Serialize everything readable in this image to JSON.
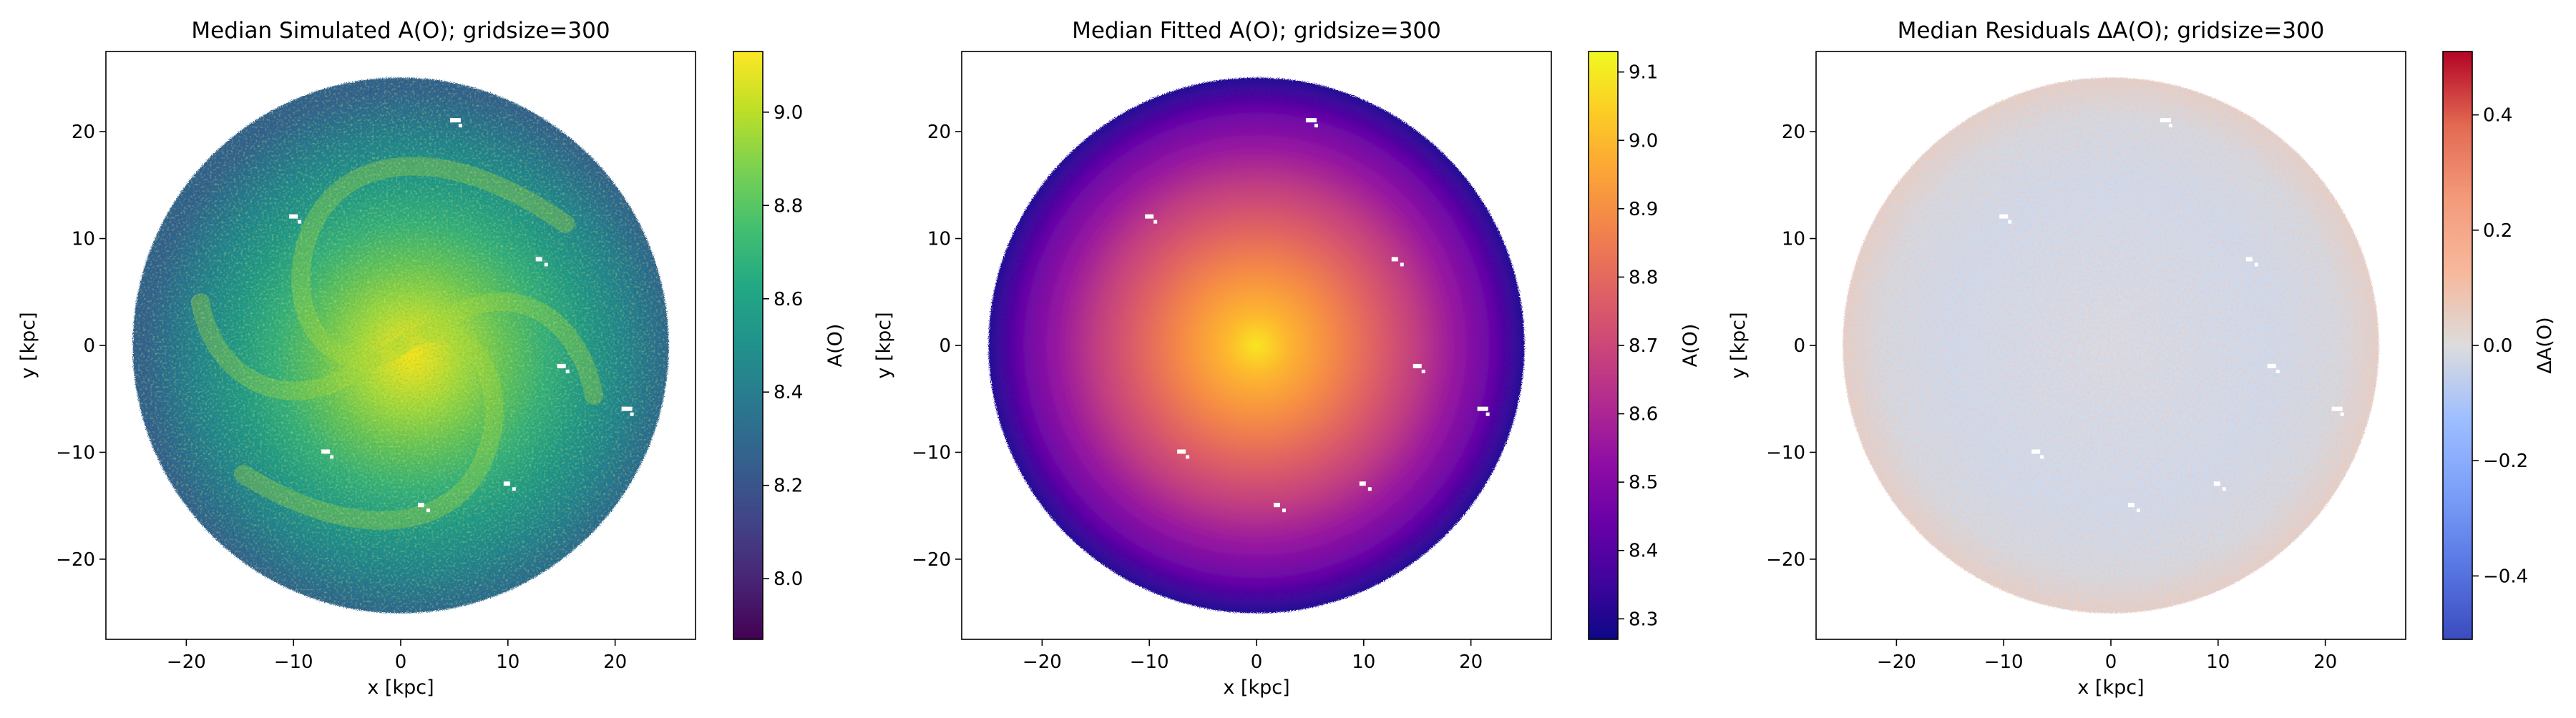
{
  "panels": [
    {
      "title": "Median Simulated A(O); gridsize=300",
      "xlabel": "x [kpc]",
      "ylabel": "y [kpc]",
      "xlim": [
        -27.5,
        27.5
      ],
      "ylim": [
        -27.5,
        27.5
      ],
      "xticks": [
        -20,
        -10,
        0,
        10,
        20
      ],
      "yticks": [
        -20,
        -10,
        0,
        10,
        20
      ],
      "xtick_labels": [
        "−20",
        "−10",
        "0",
        "10",
        "20"
      ],
      "ytick_labels": [
        "−20",
        "−10",
        "0",
        "10",
        "20"
      ],
      "disk_radius_kpc": 25,
      "map": "simulated",
      "colorbar": {
        "label": "A(O)",
        "cmap": "viridis",
        "range": [
          7.87,
          9.13
        ],
        "ticks": [
          8.0,
          8.2,
          8.4,
          8.6,
          8.8,
          9.0
        ],
        "tick_labels": [
          "8.0",
          "8.2",
          "8.4",
          "8.6",
          "8.8",
          "9.0"
        ]
      }
    },
    {
      "title": "Median Fitted A(O); gridsize=300",
      "xlabel": "x [kpc]",
      "ylabel": "y [kpc]",
      "xlim": [
        -27.5,
        27.5
      ],
      "ylim": [
        -27.5,
        27.5
      ],
      "xticks": [
        -20,
        -10,
        0,
        10,
        20
      ],
      "yticks": [
        -20,
        -10,
        0,
        10,
        20
      ],
      "xtick_labels": [
        "−20",
        "−10",
        "0",
        "10",
        "20"
      ],
      "ytick_labels": [
        "−20",
        "−10",
        "0",
        "10",
        "20"
      ],
      "disk_radius_kpc": 25,
      "map": "fitted",
      "colorbar": {
        "label": "A(O)",
        "cmap": "plasma",
        "range": [
          8.27,
          9.13
        ],
        "ticks": [
          8.3,
          8.4,
          8.5,
          8.6,
          8.7,
          8.8,
          8.9,
          9.0,
          9.1
        ],
        "tick_labels": [
          "8.3",
          "8.4",
          "8.5",
          "8.6",
          "8.7",
          "8.8",
          "8.9",
          "9.0",
          "9.1"
        ]
      }
    },
    {
      "title": "Median Residuals ΔA(O); gridsize=300",
      "xlabel": "x [kpc]",
      "ylabel": "y [kpc]",
      "xlim": [
        -27.5,
        27.5
      ],
      "ylim": [
        -27.5,
        27.5
      ],
      "xticks": [
        -20,
        -10,
        0,
        10,
        20
      ],
      "yticks": [
        -20,
        -10,
        0,
        10,
        20
      ],
      "xtick_labels": [
        "−20",
        "−10",
        "0",
        "10",
        "20"
      ],
      "ytick_labels": [
        "−20",
        "−10",
        "0",
        "10",
        "20"
      ],
      "disk_radius_kpc": 25,
      "map": "residual",
      "colorbar": {
        "label": "ΔA(O)",
        "cmap": "coolwarm",
        "range": [
          -0.51,
          0.51
        ],
        "ticks": [
          -0.4,
          -0.2,
          0.0,
          0.2,
          0.4
        ],
        "tick_labels": [
          "−0.4",
          "−0.2",
          "0.0",
          "0.2",
          "0.4"
        ]
      }
    }
  ],
  "chart_data": [
    {
      "type": "heatmap",
      "title": "Median Simulated A(O); gridsize=300",
      "xlabel": "x [kpc]",
      "ylabel": "y [kpc]",
      "xlim": [
        -27.5,
        27.5
      ],
      "ylim": [
        -27.5,
        27.5
      ],
      "colorbar_label": "A(O)",
      "colormap": "viridis",
      "value_range": [
        7.87,
        9.13
      ],
      "disk_radius": 25,
      "center_value": 9.05,
      "edge_value": 8.3
    },
    {
      "type": "heatmap",
      "title": "Median Fitted A(O); gridsize=300",
      "xlabel": "x [kpc]",
      "ylabel": "y [kpc]",
      "xlim": [
        -27.5,
        27.5
      ],
      "ylim": [
        -27.5,
        27.5
      ],
      "colorbar_label": "A(O)",
      "colormap": "plasma",
      "value_range": [
        8.27,
        9.13
      ],
      "disk_radius": 25,
      "center_value": 9.1,
      "edge_value": 8.28
    },
    {
      "type": "heatmap",
      "title": "Median Residuals ΔA(O); gridsize=300",
      "xlabel": "x [kpc]",
      "ylabel": "y [kpc]",
      "xlim": [
        -27.5,
        27.5
      ],
      "ylim": [
        -27.5,
        27.5
      ],
      "colorbar_label": "ΔA(O)",
      "colormap": "coolwarm",
      "value_range": [
        -0.51,
        0.51
      ],
      "disk_radius": 25,
      "center_value": 0.0
    }
  ]
}
